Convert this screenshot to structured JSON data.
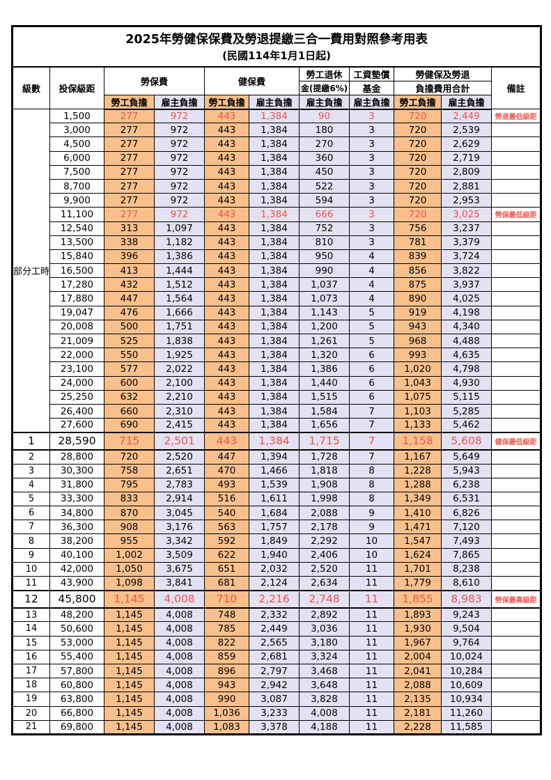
{
  "colors": {
    "accent_orange": "#F9C08C",
    "accent_lavender": "#E2E2F2",
    "highlight_red": "#F0524B",
    "border_black": "#000000"
  },
  "table": {
    "title": "2025年勞健保保費及勞退提繳三合一費用對照參考用表",
    "subtitle": "(民國114年1月1日起)",
    "headers": {
      "level": "級數",
      "bracket": "投保級距",
      "labor_insurance": "勞保費",
      "health_insurance": "健保費",
      "pension_line1": "勞工退休",
      "pension_line2": "金(提繳6%)",
      "wage_fund_line1": "工資墊償",
      "wage_fund_line2": "基金",
      "total_line1": "勞健保及勞退",
      "total_line2": "負擔費用合計",
      "remark": "備註",
      "employee_share": "勞工負擔",
      "employer_share": "雇主負擔"
    },
    "part_time_label": "部分工時",
    "part_time_rowspan": 23,
    "rows": [
      {
        "level": "",
        "bracket": "1,500",
        "li_emp": "277",
        "li_er": "972",
        "hi_emp": "443",
        "hi_er": "1,384",
        "pension": "90",
        "fund": "3",
        "tot_emp": "720",
        "tot_er": "2,449",
        "remark": "勞退最低級距",
        "highlight": true,
        "emphasis": false
      },
      {
        "level": "",
        "bracket": "3,000",
        "li_emp": "277",
        "li_er": "972",
        "hi_emp": "443",
        "hi_er": "1,384",
        "pension": "180",
        "fund": "3",
        "tot_emp": "720",
        "tot_er": "2,539",
        "remark": "",
        "highlight": false,
        "emphasis": false
      },
      {
        "level": "",
        "bracket": "4,500",
        "li_emp": "277",
        "li_er": "972",
        "hi_emp": "443",
        "hi_er": "1,384",
        "pension": "270",
        "fund": "3",
        "tot_emp": "720",
        "tot_er": "2,629",
        "remark": "",
        "highlight": false,
        "emphasis": false
      },
      {
        "level": "",
        "bracket": "6,000",
        "li_emp": "277",
        "li_er": "972",
        "hi_emp": "443",
        "hi_er": "1,384",
        "pension": "360",
        "fund": "3",
        "tot_emp": "720",
        "tot_er": "2,719",
        "remark": "",
        "highlight": false,
        "emphasis": false
      },
      {
        "level": "",
        "bracket": "7,500",
        "li_emp": "277",
        "li_er": "972",
        "hi_emp": "443",
        "hi_er": "1,384",
        "pension": "450",
        "fund": "3",
        "tot_emp": "720",
        "tot_er": "2,809",
        "remark": "",
        "highlight": false,
        "emphasis": false
      },
      {
        "level": "",
        "bracket": "8,700",
        "li_emp": "277",
        "li_er": "972",
        "hi_emp": "443",
        "hi_er": "1,384",
        "pension": "522",
        "fund": "3",
        "tot_emp": "720",
        "tot_er": "2,881",
        "remark": "",
        "highlight": false,
        "emphasis": false
      },
      {
        "level": "",
        "bracket": "9,900",
        "li_emp": "277",
        "li_er": "972",
        "hi_emp": "443",
        "hi_er": "1,384",
        "pension": "594",
        "fund": "3",
        "tot_emp": "720",
        "tot_er": "2,953",
        "remark": "",
        "highlight": false,
        "emphasis": false
      },
      {
        "level": "",
        "bracket": "11,100",
        "li_emp": "277",
        "li_er": "972",
        "hi_emp": "443",
        "hi_er": "1,384",
        "pension": "666",
        "fund": "3",
        "tot_emp": "720",
        "tot_er": "3,025",
        "remark": "勞保最低級距",
        "highlight": true,
        "emphasis": false
      },
      {
        "level": "",
        "bracket": "12,540",
        "li_emp": "313",
        "li_er": "1,097",
        "hi_emp": "443",
        "hi_er": "1,384",
        "pension": "752",
        "fund": "3",
        "tot_emp": "756",
        "tot_er": "3,237",
        "remark": "",
        "highlight": false,
        "emphasis": false
      },
      {
        "level": "",
        "bracket": "13,500",
        "li_emp": "338",
        "li_er": "1,182",
        "hi_emp": "443",
        "hi_er": "1,384",
        "pension": "810",
        "fund": "3",
        "tot_emp": "781",
        "tot_er": "3,379",
        "remark": "",
        "highlight": false,
        "emphasis": false
      },
      {
        "level": "",
        "bracket": "15,840",
        "li_emp": "396",
        "li_er": "1,386",
        "hi_emp": "443",
        "hi_er": "1,384",
        "pension": "950",
        "fund": "4",
        "tot_emp": "839",
        "tot_er": "3,724",
        "remark": "",
        "highlight": false,
        "emphasis": false
      },
      {
        "level": "",
        "bracket": "16,500",
        "li_emp": "413",
        "li_er": "1,444",
        "hi_emp": "443",
        "hi_er": "1,384",
        "pension": "990",
        "fund": "4",
        "tot_emp": "856",
        "tot_er": "3,822",
        "remark": "",
        "highlight": false,
        "emphasis": false
      },
      {
        "level": "",
        "bracket": "17,280",
        "li_emp": "432",
        "li_er": "1,512",
        "hi_emp": "443",
        "hi_er": "1,384",
        "pension": "1,037",
        "fund": "4",
        "tot_emp": "875",
        "tot_er": "3,937",
        "remark": "",
        "highlight": false,
        "emphasis": false
      },
      {
        "level": "",
        "bracket": "17,880",
        "li_emp": "447",
        "li_er": "1,564",
        "hi_emp": "443",
        "hi_er": "1,384",
        "pension": "1,073",
        "fund": "4",
        "tot_emp": "890",
        "tot_er": "4,025",
        "remark": "",
        "highlight": false,
        "emphasis": false
      },
      {
        "level": "",
        "bracket": "19,047",
        "li_emp": "476",
        "li_er": "1,666",
        "hi_emp": "443",
        "hi_er": "1,384",
        "pension": "1,143",
        "fund": "5",
        "tot_emp": "919",
        "tot_er": "4,198",
        "remark": "",
        "highlight": false,
        "emphasis": false
      },
      {
        "level": "",
        "bracket": "20,008",
        "li_emp": "500",
        "li_er": "1,751",
        "hi_emp": "443",
        "hi_er": "1,384",
        "pension": "1,200",
        "fund": "5",
        "tot_emp": "943",
        "tot_er": "4,340",
        "remark": "",
        "highlight": false,
        "emphasis": false
      },
      {
        "level": "",
        "bracket": "21,009",
        "li_emp": "525",
        "li_er": "1,838",
        "hi_emp": "443",
        "hi_er": "1,384",
        "pension": "1,261",
        "fund": "5",
        "tot_emp": "968",
        "tot_er": "4,488",
        "remark": "",
        "highlight": false,
        "emphasis": false
      },
      {
        "level": "",
        "bracket": "22,000",
        "li_emp": "550",
        "li_er": "1,925",
        "hi_emp": "443",
        "hi_er": "1,384",
        "pension": "1,320",
        "fund": "6",
        "tot_emp": "993",
        "tot_er": "4,635",
        "remark": "",
        "highlight": false,
        "emphasis": false
      },
      {
        "level": "",
        "bracket": "23,100",
        "li_emp": "577",
        "li_er": "2,022",
        "hi_emp": "443",
        "hi_er": "1,384",
        "pension": "1,386",
        "fund": "6",
        "tot_emp": "1,020",
        "tot_er": "4,798",
        "remark": "",
        "highlight": false,
        "emphasis": false
      },
      {
        "level": "",
        "bracket": "24,000",
        "li_emp": "600",
        "li_er": "2,100",
        "hi_emp": "443",
        "hi_er": "1,384",
        "pension": "1,440",
        "fund": "6",
        "tot_emp": "1,043",
        "tot_er": "4,930",
        "remark": "",
        "highlight": false,
        "emphasis": false
      },
      {
        "level": "",
        "bracket": "25,250",
        "li_emp": "632",
        "li_er": "2,210",
        "hi_emp": "443",
        "hi_er": "1,384",
        "pension": "1,515",
        "fund": "6",
        "tot_emp": "1,075",
        "tot_er": "5,115",
        "remark": "",
        "highlight": false,
        "emphasis": false
      },
      {
        "level": "",
        "bracket": "26,400",
        "li_emp": "660",
        "li_er": "2,310",
        "hi_emp": "443",
        "hi_er": "1,384",
        "pension": "1,584",
        "fund": "7",
        "tot_emp": "1,103",
        "tot_er": "5,285",
        "remark": "",
        "highlight": false,
        "emphasis": false
      },
      {
        "level": "",
        "bracket": "27,600",
        "li_emp": "690",
        "li_er": "2,415",
        "hi_emp": "443",
        "hi_er": "1,384",
        "pension": "1,656",
        "fund": "7",
        "tot_emp": "1,133",
        "tot_er": "5,462",
        "remark": "",
        "highlight": false,
        "emphasis": false
      },
      {
        "level": "1",
        "bracket": "28,590",
        "li_emp": "715",
        "li_er": "2,501",
        "hi_emp": "443",
        "hi_er": "1,384",
        "pension": "1,715",
        "fund": "7",
        "tot_emp": "1,158",
        "tot_er": "5,608",
        "remark": "健保最低級距",
        "highlight": true,
        "emphasis": true
      },
      {
        "level": "2",
        "bracket": "28,800",
        "li_emp": "720",
        "li_er": "2,520",
        "hi_emp": "447",
        "hi_er": "1,394",
        "pension": "1,728",
        "fund": "7",
        "tot_emp": "1,167",
        "tot_er": "5,649",
        "remark": "",
        "highlight": false,
        "emphasis": false
      },
      {
        "level": "3",
        "bracket": "30,300",
        "li_emp": "758",
        "li_er": "2,651",
        "hi_emp": "470",
        "hi_er": "1,466",
        "pension": "1,818",
        "fund": "8",
        "tot_emp": "1,228",
        "tot_er": "5,943",
        "remark": "",
        "highlight": false,
        "emphasis": false
      },
      {
        "level": "4",
        "bracket": "31,800",
        "li_emp": "795",
        "li_er": "2,783",
        "hi_emp": "493",
        "hi_er": "1,539",
        "pension": "1,908",
        "fund": "8",
        "tot_emp": "1,288",
        "tot_er": "6,238",
        "remark": "",
        "highlight": false,
        "emphasis": false
      },
      {
        "level": "5",
        "bracket": "33,300",
        "li_emp": "833",
        "li_er": "2,914",
        "hi_emp": "516",
        "hi_er": "1,611",
        "pension": "1,998",
        "fund": "8",
        "tot_emp": "1,349",
        "tot_er": "6,531",
        "remark": "",
        "highlight": false,
        "emphasis": false
      },
      {
        "level": "6",
        "bracket": "34,800",
        "li_emp": "870",
        "li_er": "3,045",
        "hi_emp": "540",
        "hi_er": "1,684",
        "pension": "2,088",
        "fund": "9",
        "tot_emp": "1,410",
        "tot_er": "6,826",
        "remark": "",
        "highlight": false,
        "emphasis": false
      },
      {
        "level": "7",
        "bracket": "36,300",
        "li_emp": "908",
        "li_er": "3,176",
        "hi_emp": "563",
        "hi_er": "1,757",
        "pension": "2,178",
        "fund": "9",
        "tot_emp": "1,471",
        "tot_er": "7,120",
        "remark": "",
        "highlight": false,
        "emphasis": false
      },
      {
        "level": "8",
        "bracket": "38,200",
        "li_emp": "955",
        "li_er": "3,342",
        "hi_emp": "592",
        "hi_er": "1,849",
        "pension": "2,292",
        "fund": "10",
        "tot_emp": "1,547",
        "tot_er": "7,493",
        "remark": "",
        "highlight": false,
        "emphasis": false
      },
      {
        "level": "9",
        "bracket": "40,100",
        "li_emp": "1,002",
        "li_er": "3,509",
        "hi_emp": "622",
        "hi_er": "1,940",
        "pension": "2,406",
        "fund": "10",
        "tot_emp": "1,624",
        "tot_er": "7,865",
        "remark": "",
        "highlight": false,
        "emphasis": false
      },
      {
        "level": "10",
        "bracket": "42,000",
        "li_emp": "1,050",
        "li_er": "3,675",
        "hi_emp": "651",
        "hi_er": "2,032",
        "pension": "2,520",
        "fund": "11",
        "tot_emp": "1,701",
        "tot_er": "8,238",
        "remark": "",
        "highlight": false,
        "emphasis": false
      },
      {
        "level": "11",
        "bracket": "43,900",
        "li_emp": "1,098",
        "li_er": "3,841",
        "hi_emp": "681",
        "hi_er": "2,124",
        "pension": "2,634",
        "fund": "11",
        "tot_emp": "1,779",
        "tot_er": "8,610",
        "remark": "",
        "highlight": false,
        "emphasis": false
      },
      {
        "level": "12",
        "bracket": "45,800",
        "li_emp": "1,145",
        "li_er": "4,008",
        "hi_emp": "710",
        "hi_er": "2,216",
        "pension": "2,748",
        "fund": "11",
        "tot_emp": "1,855",
        "tot_er": "8,983",
        "remark": "勞保最高級距",
        "highlight": true,
        "emphasis": true
      },
      {
        "level": "13",
        "bracket": "48,200",
        "li_emp": "1,145",
        "li_er": "4,008",
        "hi_emp": "748",
        "hi_er": "2,332",
        "pension": "2,892",
        "fund": "11",
        "tot_emp": "1,893",
        "tot_er": "9,243",
        "remark": "",
        "highlight": false,
        "emphasis": false
      },
      {
        "level": "14",
        "bracket": "50,600",
        "li_emp": "1,145",
        "li_er": "4,008",
        "hi_emp": "785",
        "hi_er": "2,449",
        "pension": "3,036",
        "fund": "11",
        "tot_emp": "1,930",
        "tot_er": "9,504",
        "remark": "",
        "highlight": false,
        "emphasis": false
      },
      {
        "level": "15",
        "bracket": "53,000",
        "li_emp": "1,145",
        "li_er": "4,008",
        "hi_emp": "822",
        "hi_er": "2,565",
        "pension": "3,180",
        "fund": "11",
        "tot_emp": "1,967",
        "tot_er": "9,764",
        "remark": "",
        "highlight": false,
        "emphasis": false
      },
      {
        "level": "16",
        "bracket": "55,400",
        "li_emp": "1,145",
        "li_er": "4,008",
        "hi_emp": "859",
        "hi_er": "2,681",
        "pension": "3,324",
        "fund": "11",
        "tot_emp": "2,004",
        "tot_er": "10,024",
        "remark": "",
        "highlight": false,
        "emphasis": false
      },
      {
        "level": "17",
        "bracket": "57,800",
        "li_emp": "1,145",
        "li_er": "4,008",
        "hi_emp": "896",
        "hi_er": "2,797",
        "pension": "3,468",
        "fund": "11",
        "tot_emp": "2,041",
        "tot_er": "10,284",
        "remark": "",
        "highlight": false,
        "emphasis": false
      },
      {
        "level": "18",
        "bracket": "60,800",
        "li_emp": "1,145",
        "li_er": "4,008",
        "hi_emp": "943",
        "hi_er": "2,942",
        "pension": "3,648",
        "fund": "11",
        "tot_emp": "2,088",
        "tot_er": "10,609",
        "remark": "",
        "highlight": false,
        "emphasis": false
      },
      {
        "level": "19",
        "bracket": "63,800",
        "li_emp": "1,145",
        "li_er": "4,008",
        "hi_emp": "990",
        "hi_er": "3,087",
        "pension": "3,828",
        "fund": "11",
        "tot_emp": "2,135",
        "tot_er": "10,934",
        "remark": "",
        "highlight": false,
        "emphasis": false
      },
      {
        "level": "20",
        "bracket": "66,800",
        "li_emp": "1,145",
        "li_er": "4,008",
        "hi_emp": "1,036",
        "hi_er": "3,233",
        "pension": "4,008",
        "fund": "11",
        "tot_emp": "2,181",
        "tot_er": "11,260",
        "remark": "",
        "highlight": false,
        "emphasis": false
      },
      {
        "level": "21",
        "bracket": "69,800",
        "li_emp": "1,145",
        "li_er": "4,008",
        "hi_emp": "1,083",
        "hi_er": "3,378",
        "pension": "4,188",
        "fund": "11",
        "tot_emp": "2,228",
        "tot_er": "11,585",
        "remark": "",
        "highlight": false,
        "emphasis": false
      }
    ]
  }
}
